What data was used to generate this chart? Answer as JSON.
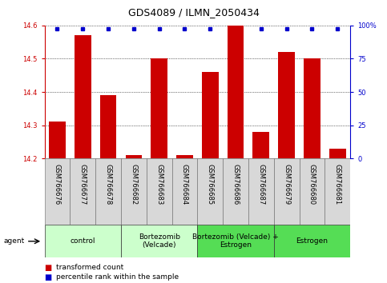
{
  "title": "GDS4089 / ILMN_2050434",
  "samples": [
    "GSM766676",
    "GSM766677",
    "GSM766678",
    "GSM766682",
    "GSM766683",
    "GSM766684",
    "GSM766685",
    "GSM766686",
    "GSM766687",
    "GSM766679",
    "GSM766680",
    "GSM766681"
  ],
  "transformed_count": [
    14.31,
    14.57,
    14.39,
    14.21,
    14.5,
    14.21,
    14.46,
    14.6,
    14.28,
    14.52,
    14.5,
    14.23
  ],
  "bar_color": "#cc0000",
  "dot_color": "#0000cc",
  "ylim_left": [
    14.2,
    14.6
  ],
  "ylim_right": [
    0,
    100
  ],
  "yticks_left": [
    14.2,
    14.3,
    14.4,
    14.5,
    14.6
  ],
  "yticks_right": [
    0,
    25,
    50,
    75,
    100
  ],
  "ytick_labels_right": [
    "0",
    "25",
    "50",
    "75",
    "100%"
  ],
  "groups": [
    {
      "label": "control",
      "start": 0,
      "end": 3,
      "color": "#ccffcc"
    },
    {
      "label": "Bortezomib\n(Velcade)",
      "start": 3,
      "end": 6,
      "color": "#ccffcc"
    },
    {
      "label": "Bortezomib (Velcade) +\nEstrogen",
      "start": 6,
      "end": 9,
      "color": "#55dd55"
    },
    {
      "label": "Estrogen",
      "start": 9,
      "end": 12,
      "color": "#55dd55"
    }
  ],
  "legend_bar_label": "transformed count",
  "legend_dot_label": "percentile rank within the sample",
  "agent_label": "agent",
  "title_fontsize": 9,
  "tick_fontsize": 6,
  "label_fontsize": 6,
  "group_fontsize": 6.5,
  "axis_color_left": "#cc0000",
  "axis_color_right": "#0000cc",
  "bg_color": "#ffffff",
  "red_dot_index": 7
}
